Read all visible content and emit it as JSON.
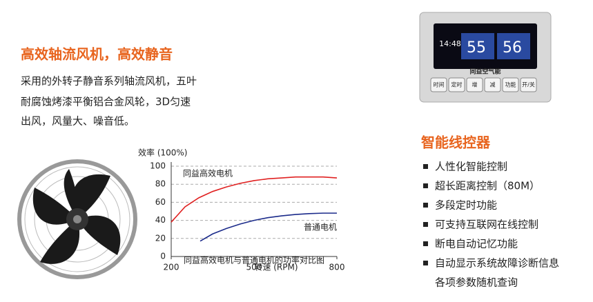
{
  "header": {
    "title": "高效轴流风机，高效静音",
    "lines": [
      "采用的外转子静音系列轴流风机，五叶",
      "耐腐蚀烤漆平衡铝合金风轮，3D匀速",
      "出风，风量大、噪音低。"
    ]
  },
  "chart_data": {
    "type": "line",
    "ylabel": "效率 (100%)",
    "xlabel": "转速 (RPM)",
    "caption": "同益高效电机与普通电机的功率对比图",
    "xlim": [
      200,
      800
    ],
    "xticks": [
      200,
      500,
      800
    ],
    "ylim": [
      0,
      100
    ],
    "yticks": [
      0,
      20,
      40,
      60,
      80,
      100
    ],
    "grid": true,
    "series": [
      {
        "name": "同益高效电机",
        "color": "#e02020",
        "x": [
          200,
          250,
          300,
          350,
          400,
          450,
          500,
          550,
          600,
          650,
          700,
          750,
          800
        ],
        "values": [
          38,
          55,
          65,
          72,
          77,
          81,
          84,
          86,
          87,
          88,
          88,
          88,
          87
        ]
      },
      {
        "name": "普通电机",
        "color": "#1a2a8a",
        "x": [
          305,
          350,
          400,
          450,
          500,
          550,
          600,
          650,
          700,
          750,
          800
        ],
        "values": [
          17,
          25,
          31,
          36,
          40,
          43,
          45,
          46.5,
          47.5,
          48,
          48
        ]
      }
    ]
  },
  "controller": {
    "brand": "同益空气能",
    "time": "14:48",
    "temp_left": "55",
    "temp_right": "56",
    "buttons": [
      "时间",
      "定时",
      "增",
      "减",
      "功能",
      "开/关"
    ]
  },
  "features": {
    "title": "智能线控器",
    "items": [
      [
        "人性化智能控制"
      ],
      [
        "超长距离控制（80M）"
      ],
      [
        "多段定时功能"
      ],
      [
        "可支持互联网在线控制"
      ],
      [
        "断电自动记忆功能"
      ],
      [
        "自动显示系统故障诊断信息",
        "各项参数随机查询"
      ]
    ]
  }
}
